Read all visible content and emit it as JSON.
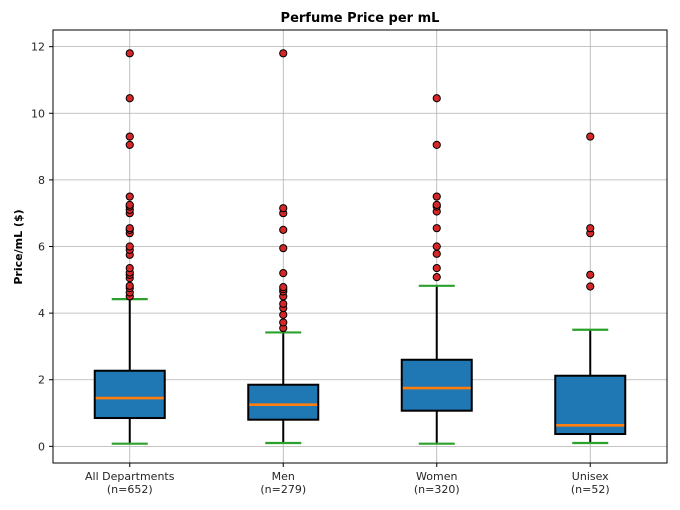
{
  "chart_data": {
    "type": "box",
    "title": "Perfume Price per mL",
    "xlabel": "",
    "ylabel": "Price/mL ($)",
    "ylim": [
      -0.5,
      12.5
    ],
    "yticks": [
      0,
      2,
      4,
      6,
      8,
      10,
      12
    ],
    "grid": true,
    "categories": [
      {
        "name": "All Departments",
        "n_label": "(n=652)"
      },
      {
        "name": "Men",
        "n_label": "(n=279)"
      },
      {
        "name": "Women",
        "n_label": "(n=320)"
      },
      {
        "name": "Unisex",
        "n_label": "(n=52)"
      }
    ],
    "boxes": [
      {
        "whisker_low": 0.08,
        "q1": 0.85,
        "median": 1.45,
        "q3": 2.27,
        "whisker_high": 4.42,
        "outliers": [
          4.5,
          4.62,
          4.75,
          4.82,
          5.05,
          5.15,
          5.22,
          5.35,
          5.75,
          5.9,
          6.0,
          6.4,
          6.5,
          6.55,
          7.0,
          7.1,
          7.2,
          7.25,
          7.5,
          9.05,
          9.3,
          10.45,
          11.8
        ]
      },
      {
        "whisker_low": 0.1,
        "q1": 0.8,
        "median": 1.25,
        "q3": 1.85,
        "whisker_high": 3.42,
        "outliers": [
          3.55,
          3.72,
          3.95,
          4.15,
          4.28,
          4.5,
          4.65,
          4.72,
          4.78,
          5.2,
          5.95,
          6.5,
          7.0,
          7.15,
          11.8
        ]
      },
      {
        "whisker_low": 0.08,
        "q1": 1.07,
        "median": 1.75,
        "q3": 2.6,
        "whisker_high": 4.82,
        "outliers": [
          5.08,
          5.35,
          5.78,
          6.0,
          6.55,
          7.05,
          7.2,
          7.25,
          7.5,
          9.05,
          10.45
        ]
      },
      {
        "whisker_low": 0.1,
        "q1": 0.37,
        "median": 0.63,
        "q3": 2.12,
        "whisker_high": 3.5,
        "outliers": [
          4.8,
          5.15,
          6.4,
          6.55,
          9.3
        ]
      }
    ],
    "colors": {
      "box_fill": "#1f77b4",
      "box_edge": "#000000",
      "median": "#ff7f0e",
      "cap": "#2ca02c",
      "outlier_fill": "#d62728",
      "outlier_edge": "#000000",
      "grid": "#b0b0b0"
    }
  }
}
